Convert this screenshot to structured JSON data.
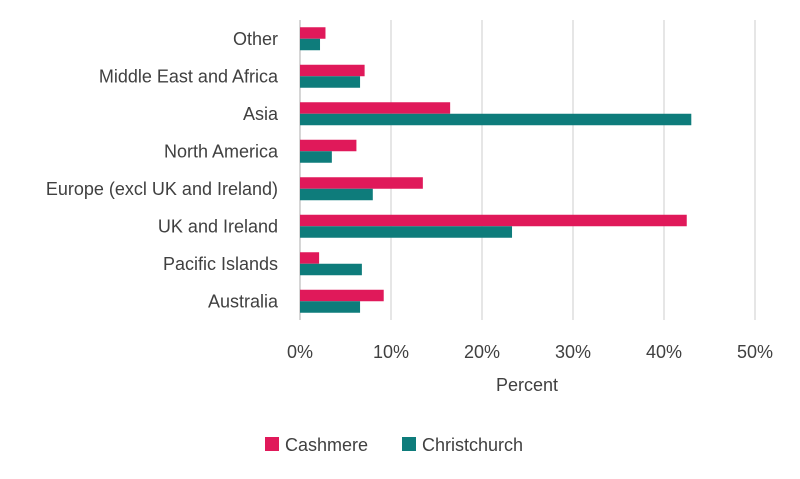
{
  "chart_data": {
    "type": "bar",
    "orientation": "horizontal",
    "categories": [
      "Other",
      "Middle East and Africa",
      "Asia",
      "North America",
      "Europe (excl UK and Ireland)",
      "UK and Ireland",
      "Pacific Islands",
      "Australia"
    ],
    "series": [
      {
        "name": "Cashmere",
        "color": "#E0195A",
        "values": [
          2.8,
          7.1,
          16.5,
          6.2,
          13.5,
          42.5,
          2.1,
          9.2
        ]
      },
      {
        "name": "Christchurch",
        "color": "#0E7C7B",
        "values": [
          2.2,
          6.6,
          43.0,
          3.5,
          8.0,
          23.3,
          6.8,
          6.6
        ]
      }
    ],
    "xlabel": "Percent",
    "xlim": [
      0,
      50
    ],
    "xticks": [
      "0%",
      "10%",
      "20%",
      "30%",
      "40%",
      "50%"
    ],
    "grid": true,
    "legend_position": "bottom"
  }
}
